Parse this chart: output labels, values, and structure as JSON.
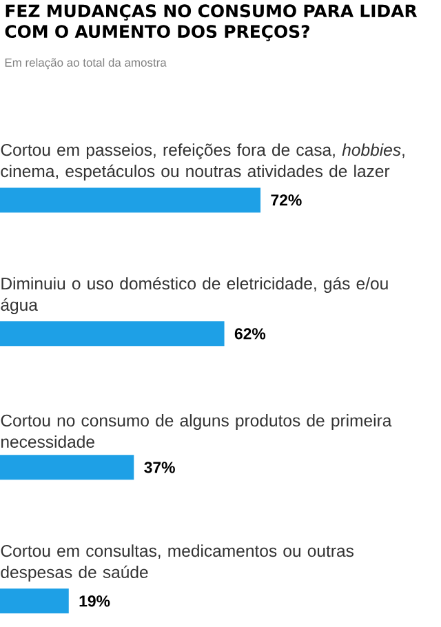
{
  "chart_data": {
    "type": "bar",
    "orientation": "horizontal",
    "title": "FEZ MUDANÇAS NO CONSUMO PARA LIDAR COM O AUMENTO DOS PREÇOS?",
    "subtitle": "Em relação ao total da amostra",
    "categories": [
      "Cortou em passeios, refeições fora de casa, *hobbies*, cinema, espetáculos ou noutras atividades de lazer",
      "Diminuiu o uso doméstico de eletricidade, gás e/ou água",
      "Cortou no consumo de alguns produtos de primeira necessidade",
      "Cortou em consultas, medicamentos ou outras despesas de saúde"
    ],
    "values": [
      72,
      62,
      37,
      19
    ],
    "value_labels": [
      "72%",
      "62%",
      "37%",
      "19%"
    ],
    "color": "#1ea0e6"
  }
}
